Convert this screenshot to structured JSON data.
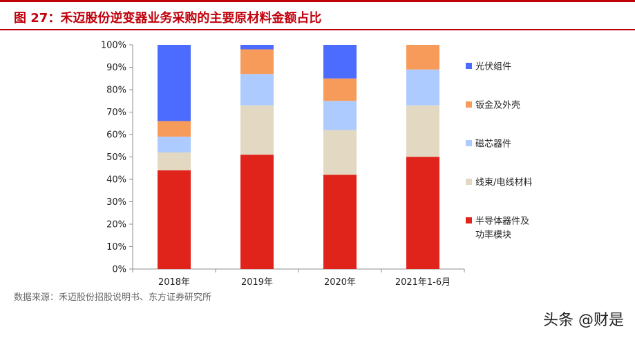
{
  "header": {
    "title": "图 27：禾迈股份逆变器业务采购的主要原材料金额占比"
  },
  "footer": {
    "source": "数据来源：禾迈股份招股说明书、东方证券研究所",
    "watermark": "头条 @财是"
  },
  "chart_data": {
    "type": "bar",
    "stacked": true,
    "categories": [
      "2018年",
      "2019年",
      "2020年",
      "2021年1-6月"
    ],
    "y_ticks": [
      "0%",
      "10%",
      "20%",
      "30%",
      "40%",
      "50%",
      "60%",
      "70%",
      "80%",
      "90%",
      "100%"
    ],
    "ylim": [
      0,
      100
    ],
    "grid": false,
    "legend_position": "right",
    "series": [
      {
        "name": "半导体器件及功率模块",
        "name_lines": [
          "半导体器件及",
          "功率模块"
        ],
        "color": "#e0241b",
        "values": [
          44,
          51,
          42,
          50
        ]
      },
      {
        "name": "线束/电线材料",
        "color": "#e3d9c3",
        "values": [
          8,
          22,
          20,
          23
        ]
      },
      {
        "name": "磁芯器件",
        "color": "#aecbff",
        "values": [
          7,
          14,
          13,
          16
        ]
      },
      {
        "name": "钣金及外壳",
        "color": "#f79b5a",
        "values": [
          7,
          11,
          10,
          11
        ]
      },
      {
        "name": "光伏组件",
        "color": "#4c6bff",
        "values": [
          34,
          2,
          15,
          0
        ]
      }
    ]
  }
}
